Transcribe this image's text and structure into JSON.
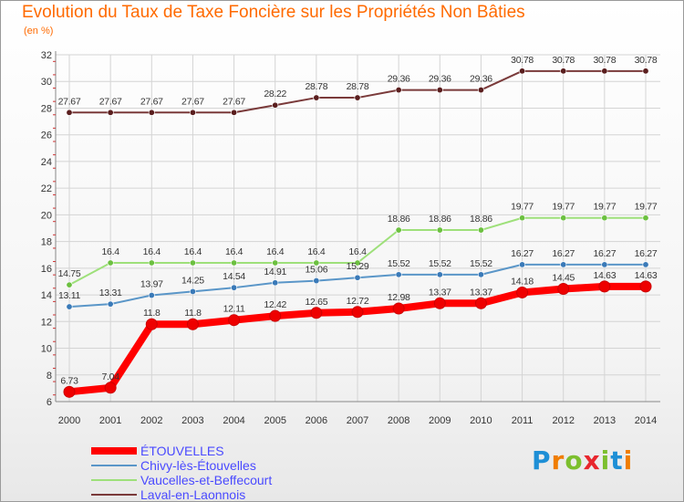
{
  "page": {
    "title": "Evolution du Taux de Taxe Foncière sur les Propriétés Non Bâties",
    "subtitle": "(en %)",
    "logo_letters": [
      "P",
      "r",
      "o",
      "x",
      "i",
      "t",
      "i"
    ]
  },
  "colors": {
    "title": "#ff6a00",
    "legend_text": "#4a4aff",
    "grid": "#d4d4d4",
    "axis": "#888888",
    "logo": [
      "#1e8fd6",
      "#f07d00",
      "#7cbf2e",
      "#e8262d",
      "#7cbf2e",
      "#1e8fd6",
      "#f07d00"
    ]
  },
  "chart_data": {
    "type": "line",
    "title": "Evolution du Taux de Taxe Foncière sur les Propriétés Non Bâties",
    "ylabel": "(en %)",
    "xlabel": "",
    "ylim": [
      6,
      32
    ],
    "ytick_step": 2,
    "grid": true,
    "legend_position": "bottom-left",
    "categories": [
      "2000",
      "2001",
      "2002",
      "2003",
      "2004",
      "2005",
      "2006",
      "2007",
      "2008",
      "2009",
      "2010",
      "2011",
      "2012",
      "2013",
      "2014"
    ],
    "series": [
      {
        "name": "Laval-en-Laonnois",
        "color": "#7a3a3a",
        "marker_color": "#5a1e1e",
        "width": 2,
        "values": [
          27.67,
          27.67,
          27.67,
          27.67,
          27.67,
          28.22,
          28.78,
          28.78,
          29.36,
          29.36,
          29.36,
          30.78,
          30.78,
          30.78,
          30.78
        ],
        "labels": [
          "27.67",
          "27.67",
          "27.67",
          "27.67",
          "27.67",
          "28.22",
          "28.78",
          "28.78",
          "29.36",
          "29.36",
          "29.36",
          "30.78",
          "30.78",
          "30.78",
          "30.78"
        ]
      },
      {
        "name": "Vaucelles-et-Beffecourt",
        "color": "#9ee07a",
        "marker_color": "#6cc040",
        "width": 2,
        "values": [
          14.75,
          16.4,
          16.4,
          16.4,
          16.4,
          16.4,
          16.4,
          16.4,
          18.86,
          18.86,
          18.86,
          19.77,
          19.77,
          19.77,
          19.77
        ],
        "labels": [
          "14.75",
          "16.4",
          "16.4",
          "16.4",
          "16.4",
          "16.4",
          "16.4",
          "16.4",
          "18.86",
          "18.86",
          "18.86",
          "19.77",
          "19.77",
          "19.77",
          "19.77"
        ]
      },
      {
        "name": "Chivy-lès-Étouvelles",
        "color": "#5a96c8",
        "marker_color": "#3a7ab8",
        "width": 2,
        "values": [
          13.11,
          13.31,
          13.97,
          14.25,
          14.54,
          14.91,
          15.06,
          15.29,
          15.52,
          15.52,
          15.52,
          16.27,
          16.27,
          16.27,
          16.27
        ],
        "labels": [
          "13.11",
          "13.31",
          "13.97",
          "14.25",
          "14.54",
          "14.91",
          "15.06",
          "15.29",
          "15.52",
          "15.52",
          "15.52",
          "16.27",
          "16.27",
          "16.27",
          "16.27"
        ]
      },
      {
        "name": "ÉTOUVELLES",
        "color": "#ff0000",
        "marker_color": "#ee0000",
        "width": 8,
        "values": [
          6.73,
          7.04,
          11.8,
          11.8,
          12.11,
          12.42,
          12.65,
          12.72,
          12.98,
          13.37,
          13.37,
          14.18,
          14.45,
          14.63,
          14.63
        ],
        "labels": [
          "6.73",
          "7.04",
          "11.8",
          "11.8",
          "12.11",
          "12.42",
          "12.65",
          "12.72",
          "12.98",
          "13.37",
          "13.37",
          "14.18",
          "14.45",
          "14.63",
          "14.63"
        ]
      }
    ],
    "legend_order": [
      "ÉTOUVELLES",
      "Chivy-lès-Étouvelles",
      "Vaucelles-et-Beffecourt",
      "Laval-en-Laonnois"
    ]
  }
}
